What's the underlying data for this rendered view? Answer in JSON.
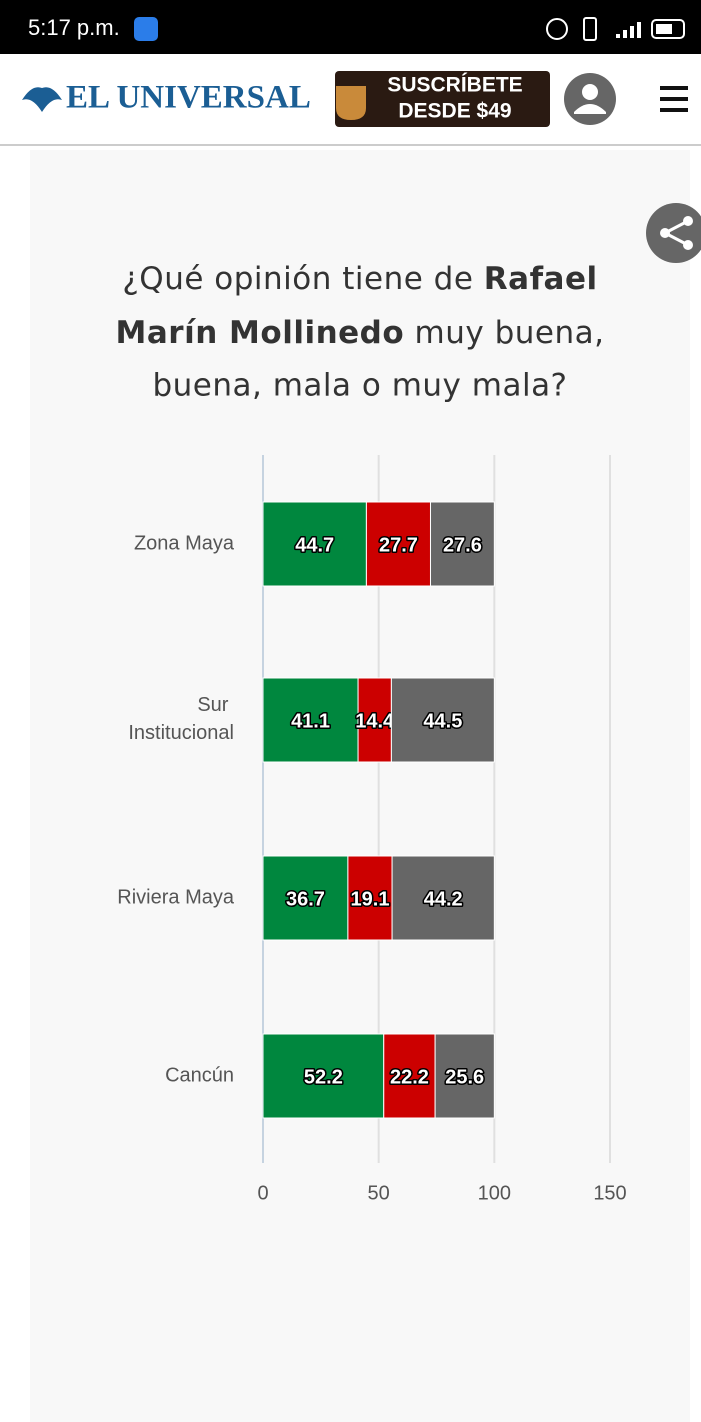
{
  "status_bar": {
    "time": "5:17 p.m."
  },
  "header": {
    "logo": "EL UNIVERSAL",
    "subscribe": [
      "SUSCRÍBETE",
      "DESDE $49"
    ]
  },
  "chart_data": {
    "type": "bar",
    "orientation": "horizontal",
    "stacked": true,
    "title": [
      "¿Qué opinión tiene de ",
      "Rafael",
      "Marín Mollinedo",
      " muy buena,",
      "buena, mala o muy mala?"
    ],
    "categories": [
      "Zona Maya",
      "Sur Institucional",
      "Riviera Maya",
      "Cancún"
    ],
    "series": [
      {
        "color": "#00873e",
        "values": [
          44.7,
          41.1,
          36.7,
          52.2
        ]
      },
      {
        "color": "#cc0000",
        "values": [
          27.7,
          14.4,
          19.1,
          22.2
        ]
      },
      {
        "color": "#666666",
        "values": [
          27.6,
          44.5,
          44.2,
          25.6
        ]
      }
    ],
    "xlim": [
      0,
      150
    ],
    "xticks": [
      0,
      50,
      100,
      150
    ],
    "grid": true
  }
}
